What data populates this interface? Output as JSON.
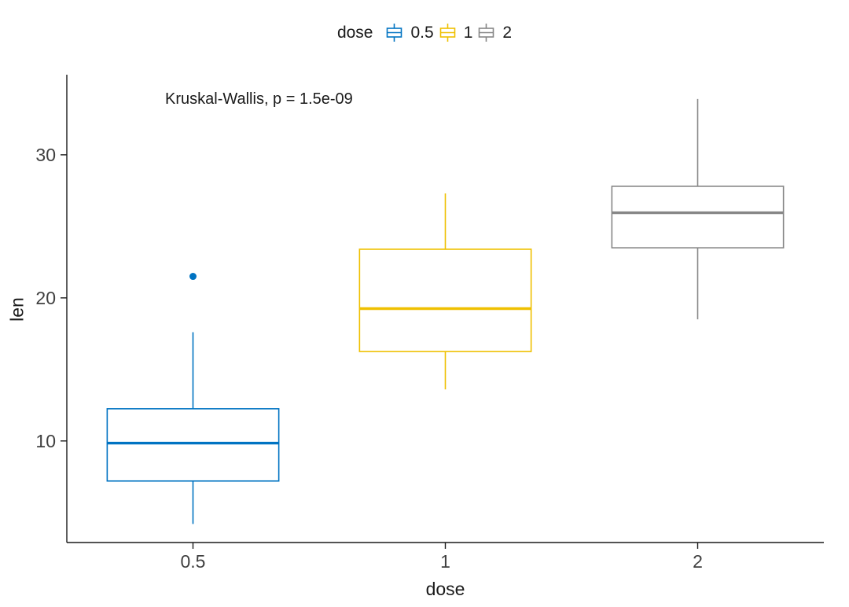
{
  "legend": {
    "title": "dose",
    "items": [
      {
        "label": "0.5",
        "color": "#0073C2"
      },
      {
        "label": "1",
        "color": "#EFC000"
      },
      {
        "label": "2",
        "color": "#868686"
      }
    ]
  },
  "annotation": "Kruskal-Wallis, p = 1.5e-09",
  "chart_data": {
    "type": "boxplot",
    "title": "",
    "xlabel": "dose",
    "ylabel": "len",
    "categories": [
      "0.5",
      "1",
      "2"
    ],
    "ylim": [
      2.9,
      35.6
    ],
    "yticks": [
      10,
      20,
      30
    ],
    "grid": false,
    "legend_position": "top",
    "series": [
      {
        "name": "0.5",
        "color": "#0073C2",
        "min": 4.2,
        "q1": 7.2,
        "median": 9.85,
        "q3": 12.25,
        "max": 17.6,
        "outliers": [
          21.5
        ]
      },
      {
        "name": "1",
        "color": "#EFC000",
        "min": 13.6,
        "q1": 16.25,
        "median": 19.25,
        "q3": 23.4,
        "max": 27.3,
        "outliers": []
      },
      {
        "name": "2",
        "color": "#868686",
        "min": 18.5,
        "q1": 23.5,
        "median": 25.95,
        "q3": 27.8,
        "max": 33.9,
        "outliers": []
      }
    ]
  }
}
